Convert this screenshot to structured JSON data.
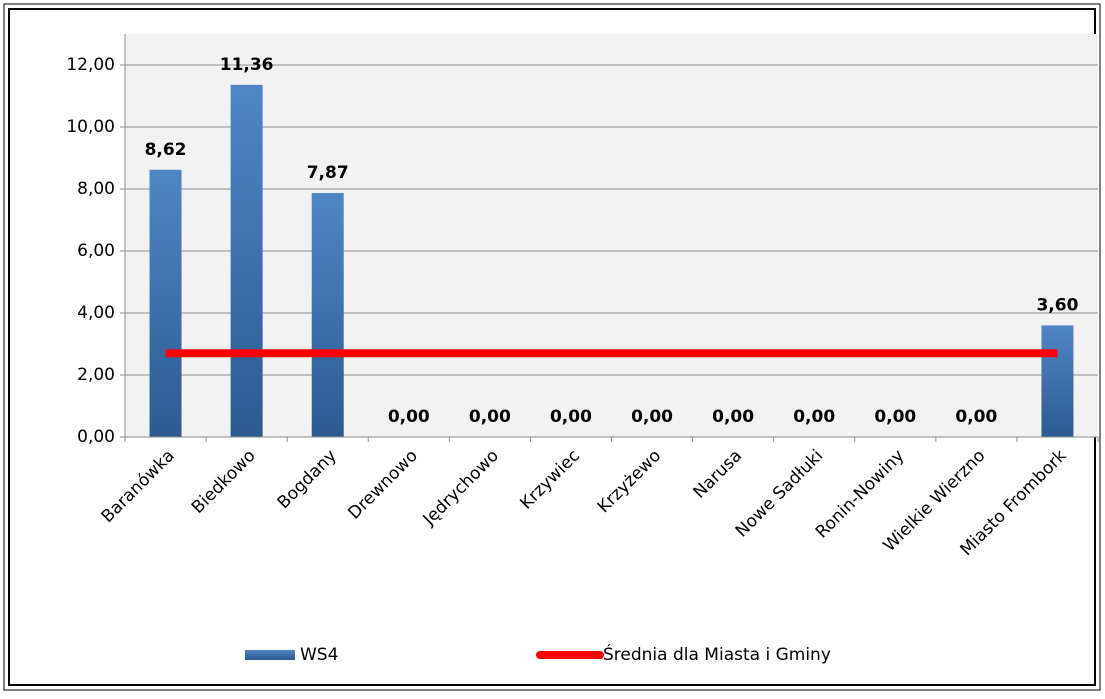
{
  "chart_data": {
    "type": "bar",
    "categories": [
      "Baranówka",
      "Biedkowo",
      "Bogdany",
      "Drewnowo",
      "Jędrychowo",
      "Krzywiec",
      "Krzyżewo",
      "Narusa",
      "Nowe Sadłuki",
      "Ronin-Nowiny",
      "Wielkie Wierzno",
      "Miasto Frombork"
    ],
    "series": [
      {
        "name": "WS4",
        "color": "#4a7ebb",
        "values": [
          8.62,
          11.36,
          7.87,
          0,
          0,
          0,
          0,
          0,
          0,
          0,
          0,
          3.6
        ],
        "value_labels": [
          "8,62",
          "11,36",
          "7,87",
          "0,00",
          "0,00",
          "0,00",
          "0,00",
          "0,00",
          "0,00",
          "0,00",
          "0,00",
          "3,60"
        ]
      },
      {
        "name": "Średnia dla Miasta i Gminy",
        "type": "line",
        "color": "#ff0000",
        "values": [
          2.7,
          2.7,
          2.7,
          2.7,
          2.7,
          2.7,
          2.7,
          2.7,
          2.7,
          2.7,
          2.7,
          2.7
        ]
      }
    ],
    "ylim": [
      0,
      13
    ],
    "yticks": [
      {
        "value": 0,
        "label": "0,00"
      },
      {
        "value": 2,
        "label": "2,00"
      },
      {
        "value": 4,
        "label": "4,00"
      },
      {
        "value": 6,
        "label": "6,00"
      },
      {
        "value": 8,
        "label": "8,00"
      },
      {
        "value": 10,
        "label": "10,00"
      },
      {
        "value": 12,
        "label": "12,00"
      }
    ],
    "grid": true,
    "legend": "bottom"
  }
}
